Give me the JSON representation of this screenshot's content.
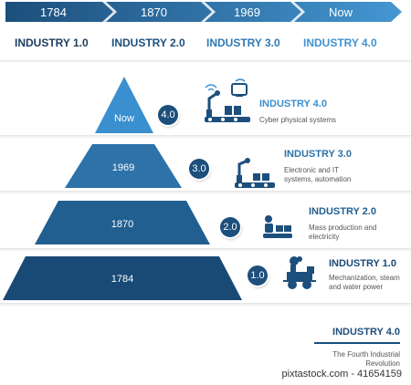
{
  "timeline": [
    "1784",
    "1870",
    "1969",
    "Now"
  ],
  "industries_header": [
    "INDUSTRY 1.0",
    "INDUSTRY 2.0",
    "INDUSTRY 3.0",
    "INDUSTRY 4.0"
  ],
  "tiers": [
    {
      "year": "Now",
      "badge": "4.0",
      "title": "INDUSTRY 4.0",
      "desc": [
        "Cyber physical systems"
      ]
    },
    {
      "year": "1969",
      "badge": "3.0",
      "title": "INDUSTRY 3.0",
      "desc": [
        "Electronic and IT",
        "systems, automation"
      ]
    },
    {
      "year": "1870",
      "badge": "2.0",
      "title": "INDUSTRY 2.0",
      "desc": [
        "Mass production and",
        "electricity"
      ]
    },
    {
      "year": "1784",
      "badge": "1.0",
      "title": "INDUSTRY 1.0",
      "desc": [
        "Mechanization, steam",
        "and water power"
      ]
    }
  ],
  "footer": {
    "title": "INDUSTRY 4.0",
    "subtitle": [
      "The Fourth Industrial",
      "Revolution"
    ]
  },
  "watermark_id": "pixtastock.com - 41654159",
  "colors": {
    "timeline_stops": [
      "#1c4f7c",
      "#25659a",
      "#2f79b6",
      "#3f92cf"
    ],
    "header_colors": [
      "#1c3b5e",
      "#1c4f7c",
      "#2f79b6",
      "#3f92cf"
    ],
    "tier_colors": [
      "#3a8fcf",
      "#2d72a8",
      "#225f91",
      "#194a76"
    ]
  }
}
